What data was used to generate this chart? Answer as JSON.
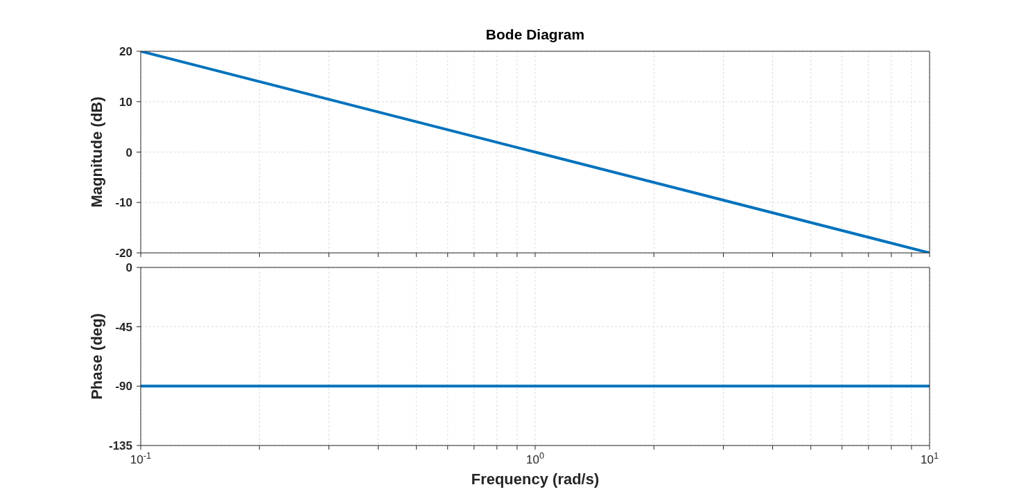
{
  "chart_data": [
    {
      "type": "line",
      "title": "Bode Diagram",
      "ylabel": "Magnitude (dB)",
      "x": [
        0.1,
        1,
        10
      ],
      "series": [
        {
          "color": "#0072bd",
          "values": [
            20,
            0,
            -20
          ]
        }
      ],
      "log": "x",
      "xlim": [
        0.1,
        10
      ],
      "xticks": [
        {
          "value": 0.1,
          "label": null
        },
        {
          "value": 0.2,
          "label": null
        },
        {
          "value": 0.3,
          "label": null
        },
        {
          "value": 0.4,
          "label": null
        },
        {
          "value": 0.5,
          "label": null
        },
        {
          "value": 0.6,
          "label": null
        },
        {
          "value": 0.7,
          "label": null
        },
        {
          "value": 0.8,
          "label": null
        },
        {
          "value": 0.9,
          "label": null
        },
        {
          "value": 1,
          "label": null
        },
        {
          "value": 2,
          "label": null
        },
        {
          "value": 3,
          "label": null
        },
        {
          "value": 4,
          "label": null
        },
        {
          "value": 5,
          "label": null
        },
        {
          "value": 6,
          "label": null
        },
        {
          "value": 7,
          "label": null
        },
        {
          "value": 8,
          "label": null
        },
        {
          "value": 9,
          "label": null
        },
        {
          "value": 10,
          "label": null
        }
      ],
      "ylim": [
        -20,
        20
      ],
      "yticks": [
        -20,
        -10,
        0,
        10,
        20
      ],
      "grid": true,
      "tick_labels": "y"
    },
    {
      "type": "line",
      "ylabel": "Phase (deg)",
      "xlabel": "Frequency  (rad/s)",
      "x": [
        0.1,
        1,
        10
      ],
      "series": [
        {
          "color": "#0072bd",
          "values": [
            -90,
            -90,
            -90
          ]
        }
      ],
      "log": "x",
      "xlim": [
        0.1,
        10
      ],
      "xticks": [
        {
          "value": 0.1,
          "label": "10$^{-1}$"
        },
        {
          "value": 0.2,
          "label": null
        },
        {
          "value": 0.3,
          "label": null
        },
        {
          "value": 0.4,
          "label": null
        },
        {
          "value": 0.5,
          "label": null
        },
        {
          "value": 0.6,
          "label": null
        },
        {
          "value": 0.7,
          "label": null
        },
        {
          "value": 0.8,
          "label": null
        },
        {
          "value": 0.9,
          "label": null
        },
        {
          "value": 1,
          "label": "10$^{0}$"
        },
        {
          "value": 2,
          "label": null
        },
        {
          "value": 3,
          "label": null
        },
        {
          "value": 4,
          "label": null
        },
        {
          "value": 5,
          "label": null
        },
        {
          "value": 6,
          "label": null
        },
        {
          "value": 7,
          "label": null
        },
        {
          "value": 8,
          "label": null
        },
        {
          "value": 9,
          "label": null
        },
        {
          "value": 10,
          "label": "10$^{1}$"
        }
      ],
      "ylim": [
        -135,
        0
      ],
      "yticks": [
        -135,
        -90,
        -45,
        0
      ],
      "grid": true
    }
  ]
}
